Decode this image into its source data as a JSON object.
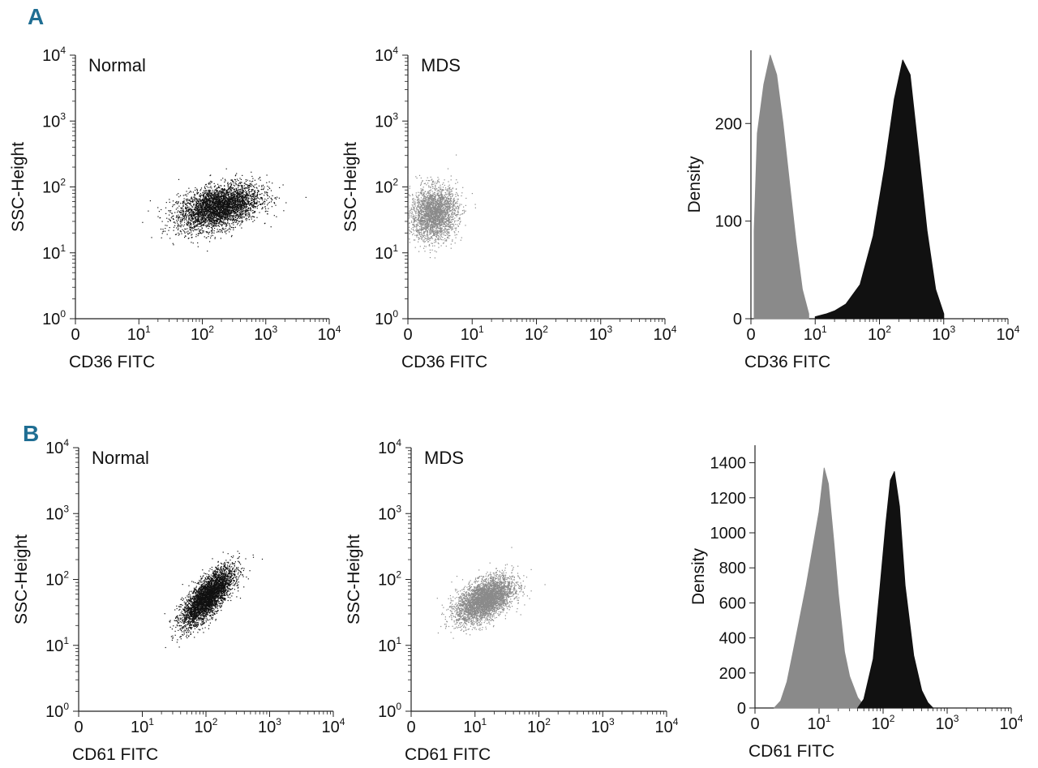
{
  "panels": [
    {
      "letter": "A"
    },
    {
      "letter": "B"
    }
  ],
  "colors": {
    "normal": "#111111",
    "mds": "#8a8a8a",
    "panel_letter": "#1f6e93",
    "axis": "#222222"
  },
  "chart_data": [
    {
      "type": "scatter",
      "panel": "A",
      "title": "Normal",
      "xlabel": "CD36 FITC",
      "ylabel": "SSC-Height",
      "x_ticks": [
        "0",
        "10^1",
        "10^2",
        "10^3",
        "10^4"
      ],
      "y_ticks": [
        "10^0",
        "10^1",
        "10^2",
        "10^3",
        "10^4"
      ],
      "xlim": [
        0,
        10000
      ],
      "ylim": [
        1,
        10000
      ],
      "x_scale": "log",
      "y_scale": "log",
      "series": [
        {
          "color": "#111111",
          "cluster": {
            "x_center": 180,
            "y_center": 50,
            "x_log_spread": 0.32,
            "y_log_spread": 0.17,
            "correlation": 0.4,
            "n_points": 3800
          }
        }
      ]
    },
    {
      "type": "scatter",
      "panel": "A",
      "title": "MDS",
      "xlabel": "CD36 FITC",
      "ylabel": "SSC-Height",
      "x_ticks": [
        "0",
        "10^1",
        "10^2",
        "10^3",
        "10^4"
      ],
      "y_ticks": [
        "10^0",
        "10^1",
        "10^2",
        "10^3",
        "10^4"
      ],
      "xlim": [
        0,
        10000
      ],
      "ylim": [
        1,
        10000
      ],
      "x_scale": "log",
      "y_scale": "log",
      "series": [
        {
          "color": "#8a8a8a",
          "cluster": {
            "x_center": 4,
            "y_center": 40,
            "x_log_spread": 0.18,
            "y_log_spread": 0.2,
            "correlation": 0.1,
            "n_points": 2600
          }
        }
      ]
    },
    {
      "type": "area",
      "panel": "A",
      "xlabel": "CD36 FITC",
      "ylabel": "Density",
      "x_ticks": [
        "0",
        "10^1",
        "10^2",
        "10^3",
        "10^4"
      ],
      "y_ticks": [
        0,
        100,
        200
      ],
      "xlim": [
        0,
        10000
      ],
      "ylim": [
        0,
        275
      ],
      "x_scale": "log",
      "series": [
        {
          "color": "#8a8a8a",
          "x": [
            0.5,
            1,
            2,
            3,
            4,
            5,
            6,
            7,
            8,
            9
          ],
          "y": [
            90,
            190,
            240,
            270,
            250,
            200,
            140,
            80,
            30,
            5
          ]
        },
        {
          "color": "#111111",
          "x": [
            10,
            15,
            20,
            30,
            50,
            80,
            120,
            170,
            230,
            300,
            400,
            550,
            750,
            1000
          ],
          "y": [
            2,
            5,
            8,
            15,
            35,
            85,
            155,
            225,
            265,
            250,
            175,
            90,
            30,
            5
          ]
        }
      ]
    },
    {
      "type": "scatter",
      "panel": "B",
      "title": "Normal",
      "xlabel": "CD61 FITC",
      "ylabel": "SSC-Height",
      "x_ticks": [
        "0",
        "10^1",
        "10^2",
        "10^3",
        "10^4"
      ],
      "y_ticks": [
        "10^0",
        "10^1",
        "10^2",
        "10^3",
        "10^4"
      ],
      "xlim": [
        0,
        10000
      ],
      "ylim": [
        1,
        10000
      ],
      "x_scale": "log",
      "y_scale": "log",
      "series": [
        {
          "color": "#111111",
          "cluster": {
            "x_center": 105,
            "y_center": 55,
            "x_log_spread": 0.2,
            "y_log_spread": 0.22,
            "correlation": 0.75,
            "n_points": 3800
          }
        }
      ]
    },
    {
      "type": "scatter",
      "panel": "B",
      "title": "MDS",
      "xlabel": "CD61 FITC",
      "ylabel": "SSC-Height",
      "x_ticks": [
        "0",
        "10^1",
        "10^2",
        "10^3",
        "10^4"
      ],
      "y_ticks": [
        "10^0",
        "10^1",
        "10^2",
        "10^3",
        "10^4"
      ],
      "xlim": [
        0,
        10000
      ],
      "ylim": [
        1,
        10000
      ],
      "x_scale": "log",
      "y_scale": "log",
      "series": [
        {
          "color": "#8a8a8a",
          "cluster": {
            "x_center": 14,
            "y_center": 50,
            "x_log_spread": 0.22,
            "y_log_spread": 0.17,
            "correlation": 0.5,
            "n_points": 3800
          }
        }
      ]
    },
    {
      "type": "area",
      "panel": "B",
      "xlabel": "CD61 FITC",
      "ylabel": "Density",
      "x_ticks": [
        "0",
        "10^1",
        "10^2",
        "10^3",
        "10^4"
      ],
      "y_ticks": [
        0,
        200,
        400,
        600,
        800,
        1000,
        1200,
        1400
      ],
      "xlim": [
        0,
        10000
      ],
      "ylim": [
        0,
        1500
      ],
      "x_scale": "log",
      "series": [
        {
          "color": "#8a8a8a",
          "x": [
            3,
            4,
            5,
            6,
            8,
            10,
            12,
            14,
            17,
            20,
            25,
            30,
            40,
            50,
            60
          ],
          "y": [
            0,
            40,
            150,
            330,
            700,
            1120,
            1370,
            1280,
            950,
            650,
            320,
            180,
            60,
            15,
            0
          ]
        },
        {
          "color": "#111111",
          "x": [
            40,
            50,
            70,
            90,
            110,
            130,
            150,
            180,
            220,
            300,
            400,
            500,
            600
          ],
          "y": [
            0,
            50,
            280,
            700,
            1050,
            1300,
            1350,
            1150,
            700,
            300,
            100,
            30,
            0
          ]
        }
      ]
    }
  ]
}
